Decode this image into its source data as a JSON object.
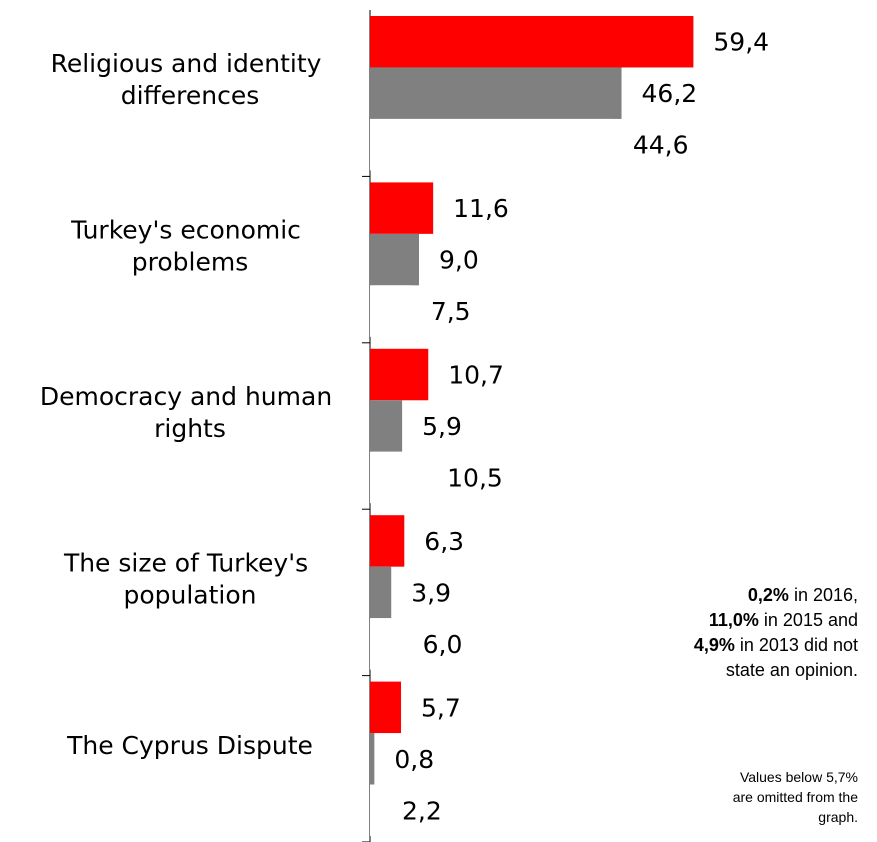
{
  "chart_data": {
    "type": "bar",
    "orientation": "horizontal",
    "categories": [
      "Religious and identity differences",
      "Turkey's economic problems",
      "Democracy and human rights",
      "The size of Turkey's population",
      "The Cyprus Dispute"
    ],
    "series": [
      {
        "color": "#ff0000",
        "values": [
          59.4,
          11.6,
          10.7,
          6.3,
          5.7
        ],
        "value_labels": [
          "59,4",
          "11,6",
          "10,7",
          "6,3",
          "5,7"
        ]
      },
      {
        "color": "#808080",
        "values": [
          46.2,
          9.0,
          5.9,
          3.9,
          0.8
        ],
        "value_labels": [
          "46,2",
          "9,0",
          "5,9",
          "3,9",
          "0,8"
        ]
      },
      {
        "color": "#ffffff",
        "values": [
          44.6,
          7.5,
          10.5,
          6.0,
          2.2
        ],
        "value_labels": [
          "44,6",
          "7,5",
          "10,5",
          "6,0",
          "2,2"
        ]
      }
    ],
    "xlim": [
      0,
      90
    ],
    "annotations": [
      {
        "lines": [
          [
            {
              "text": "0,2%",
              "bold": true
            },
            {
              "text": " in 2016,"
            }
          ],
          [
            {
              "text": "11,0%",
              "bold": true
            },
            {
              "text": " in 2015 and"
            }
          ],
          [
            {
              "text": "4,9%",
              "bold": true
            },
            {
              "text": " in 2013 did not"
            }
          ],
          [
            {
              "text": "state an opinion."
            }
          ]
        ]
      },
      {
        "lines": [
          [
            {
              "text": "Values below 5,7%"
            }
          ],
          [
            {
              "text": "are omitted from the"
            }
          ],
          [
            {
              "text": "graph."
            }
          ]
        ]
      }
    ]
  }
}
